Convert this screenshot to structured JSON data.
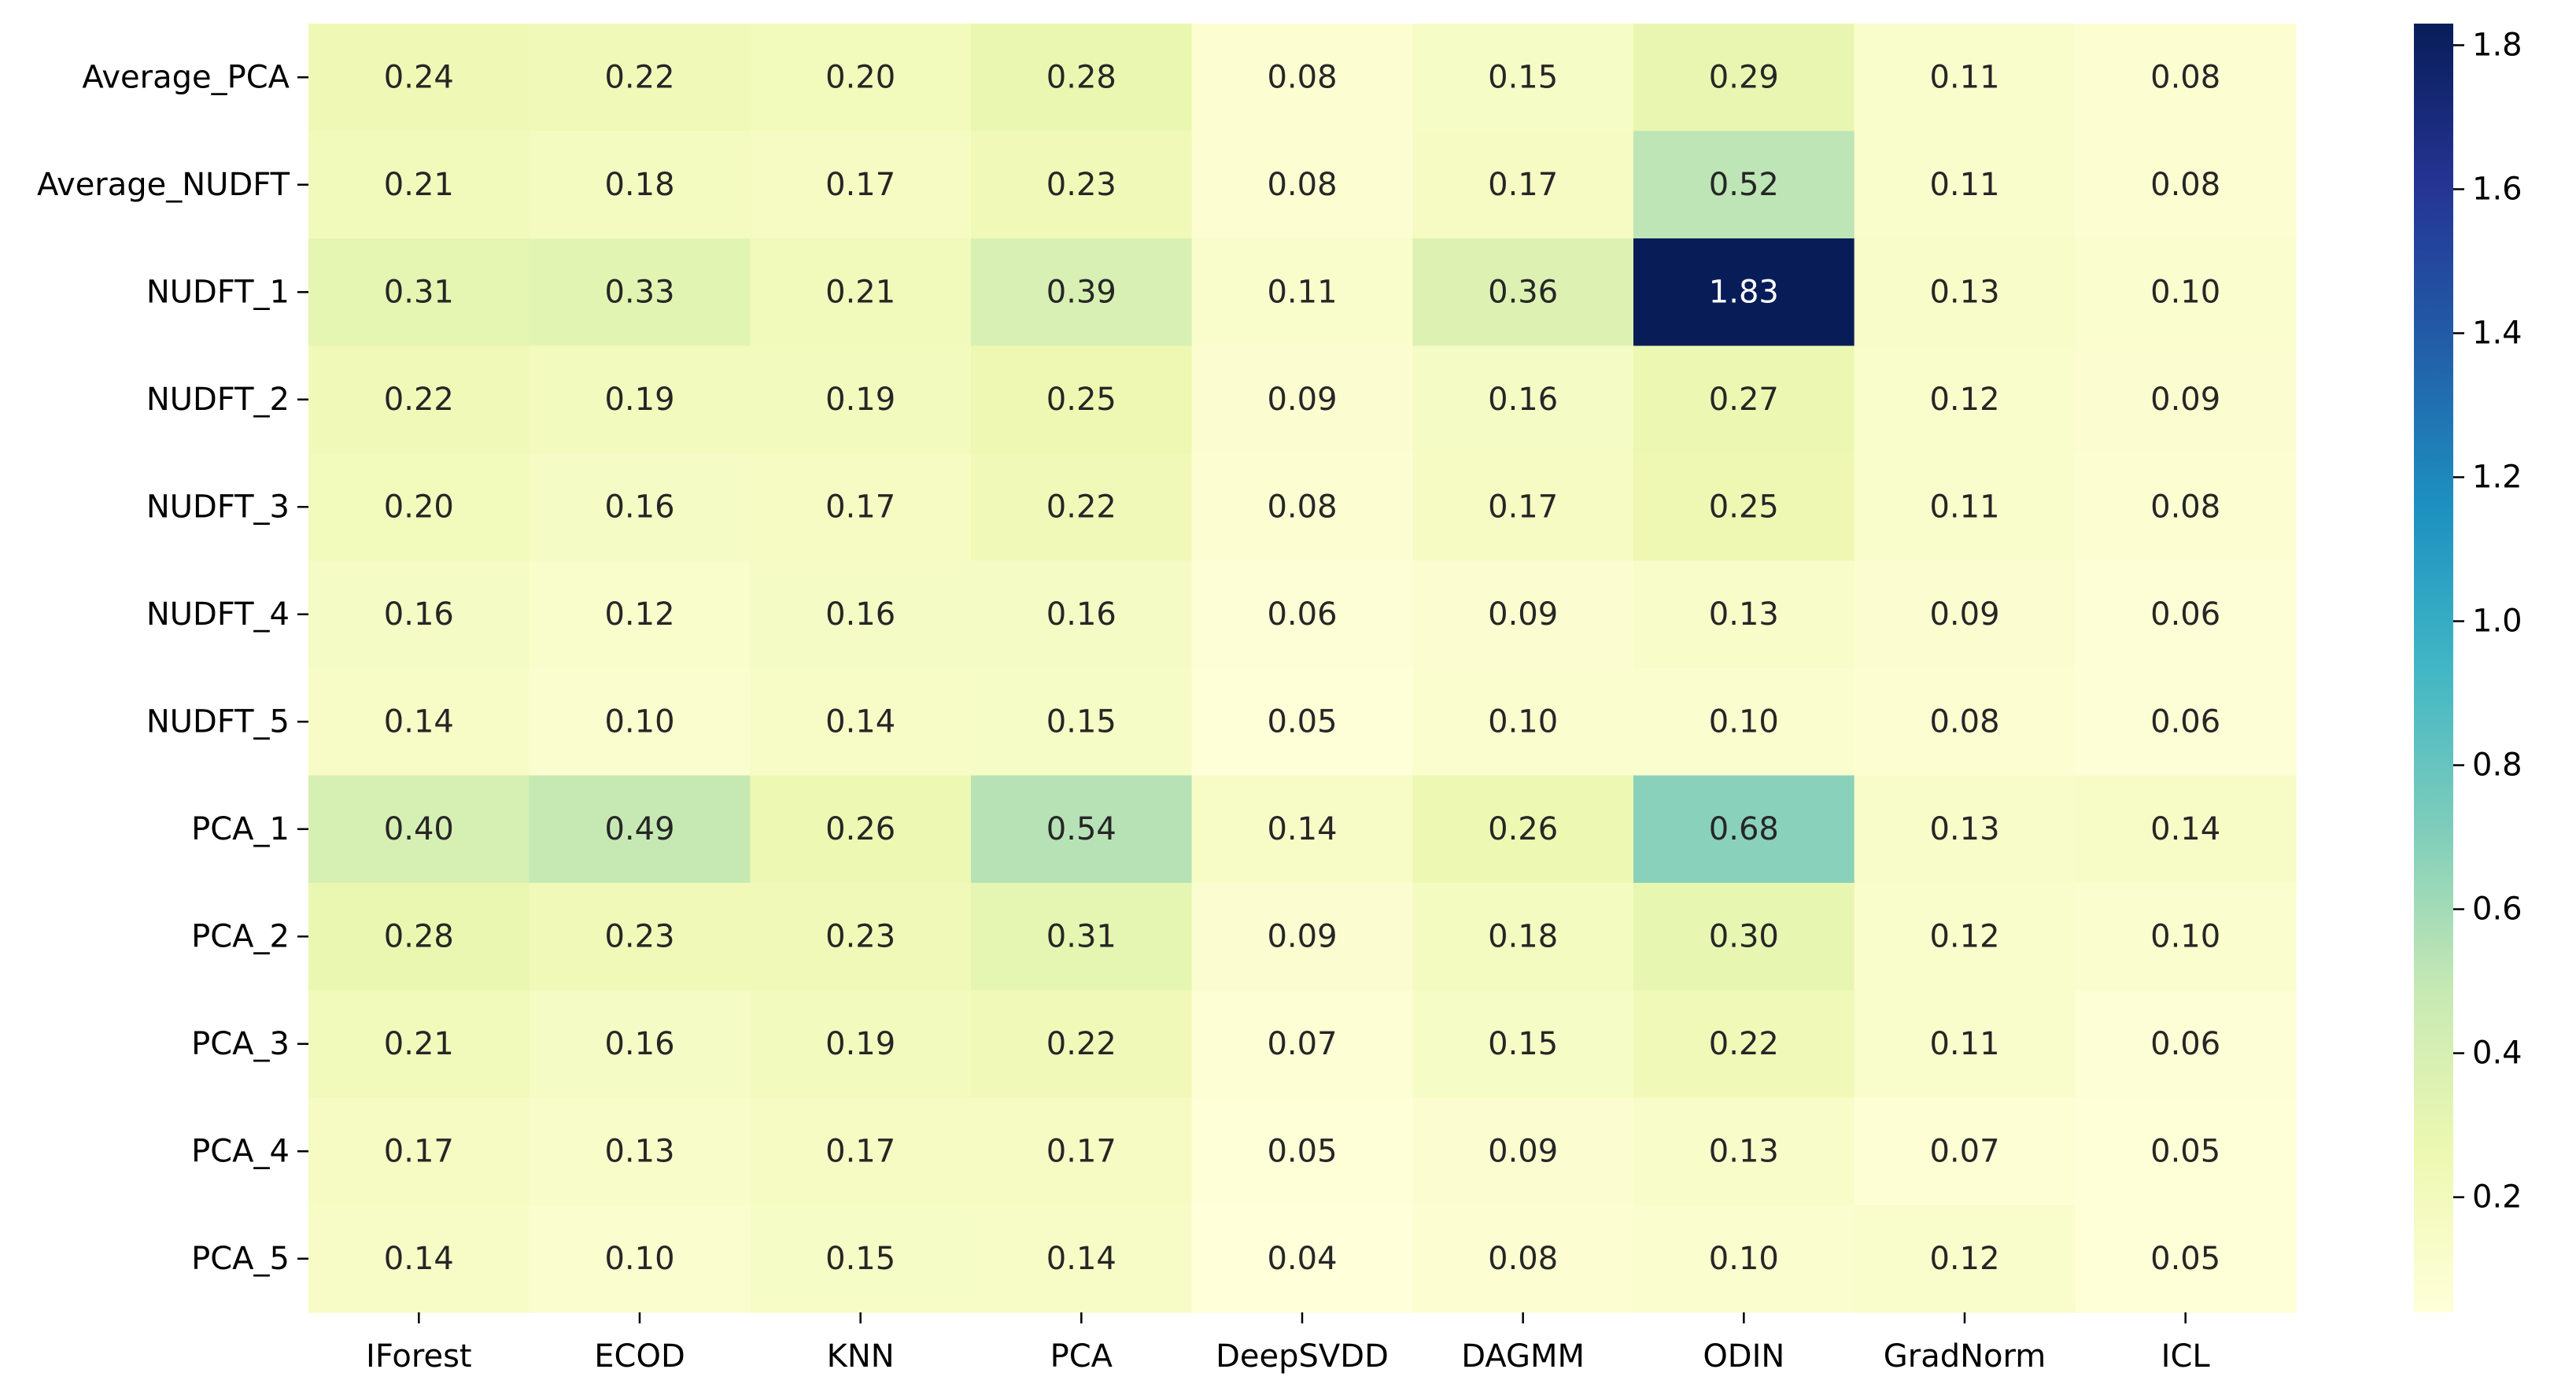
{
  "chart_data": {
    "type": "heatmap",
    "title": "",
    "xlabel": "",
    "ylabel": "",
    "columns": [
      "IForest",
      "ECOD",
      "KNN",
      "PCA",
      "DeepSVDD",
      "DAGMM",
      "ODIN",
      "GradNorm",
      "ICL"
    ],
    "rows": [
      "Average_PCA",
      "Average_NUDFT",
      "NUDFT_1",
      "NUDFT_2",
      "NUDFT_3",
      "NUDFT_4",
      "NUDFT_5",
      "PCA_1",
      "PCA_2",
      "PCA_3",
      "PCA_4",
      "PCA_5"
    ],
    "values": [
      [
        0.24,
        0.22,
        0.2,
        0.28,
        0.08,
        0.15,
        0.29,
        0.11,
        0.08
      ],
      [
        0.21,
        0.18,
        0.17,
        0.23,
        0.08,
        0.17,
        0.52,
        0.11,
        0.08
      ],
      [
        0.31,
        0.33,
        0.21,
        0.39,
        0.11,
        0.36,
        1.83,
        0.13,
        0.1
      ],
      [
        0.22,
        0.19,
        0.19,
        0.25,
        0.09,
        0.16,
        0.27,
        0.12,
        0.09
      ],
      [
        0.2,
        0.16,
        0.17,
        0.22,
        0.08,
        0.17,
        0.25,
        0.11,
        0.08
      ],
      [
        0.16,
        0.12,
        0.16,
        0.16,
        0.06,
        0.09,
        0.13,
        0.09,
        0.06
      ],
      [
        0.14,
        0.1,
        0.14,
        0.15,
        0.05,
        0.1,
        0.1,
        0.08,
        0.06
      ],
      [
        0.4,
        0.49,
        0.26,
        0.54,
        0.14,
        0.26,
        0.68,
        0.13,
        0.14
      ],
      [
        0.28,
        0.23,
        0.23,
        0.31,
        0.09,
        0.18,
        0.3,
        0.12,
        0.1
      ],
      [
        0.21,
        0.16,
        0.19,
        0.22,
        0.07,
        0.15,
        0.22,
        0.11,
        0.06
      ],
      [
        0.17,
        0.13,
        0.17,
        0.17,
        0.05,
        0.09,
        0.13,
        0.07,
        0.05
      ],
      [
        0.14,
        0.1,
        0.15,
        0.14,
        0.04,
        0.08,
        0.1,
        0.12,
        0.05
      ]
    ],
    "value_format": "2 decimals",
    "colormap": "YlGnBu",
    "vmin": 0.04,
    "vmax": 1.83,
    "colorbar": {
      "placement": "right",
      "ticks": [
        "0.2",
        "0.4",
        "0.6",
        "0.8",
        "1.0",
        "1.2",
        "1.4",
        "1.6",
        "1.8"
      ]
    },
    "grid": false
  }
}
